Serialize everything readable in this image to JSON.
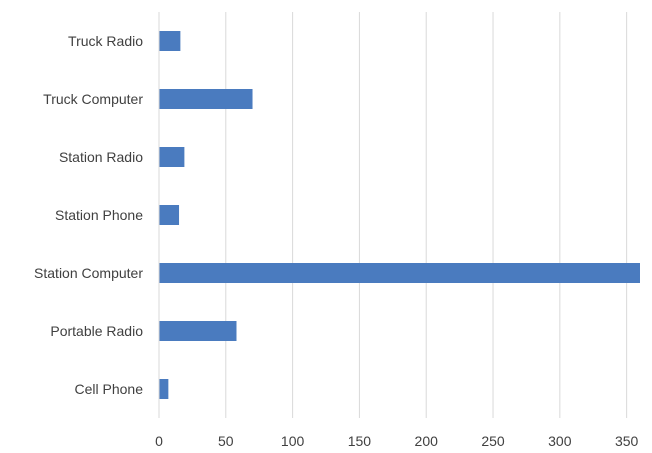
{
  "chart_data": {
    "type": "bar",
    "orientation": "horizontal",
    "categories": [
      "Truck Radio",
      "Truck Computer",
      "Station Radio",
      "Station Phone",
      "Station Computer",
      "Portable Radio",
      "Cell Phone"
    ],
    "values": [
      16,
      70,
      19,
      15,
      360,
      58,
      7
    ],
    "xlim": [
      0,
      360
    ],
    "xticks": [
      0,
      50,
      100,
      150,
      200,
      250,
      300,
      350
    ],
    "grid": true,
    "bar_color": "#4a7bbf",
    "title": "",
    "xlabel": "",
    "ylabel": ""
  }
}
